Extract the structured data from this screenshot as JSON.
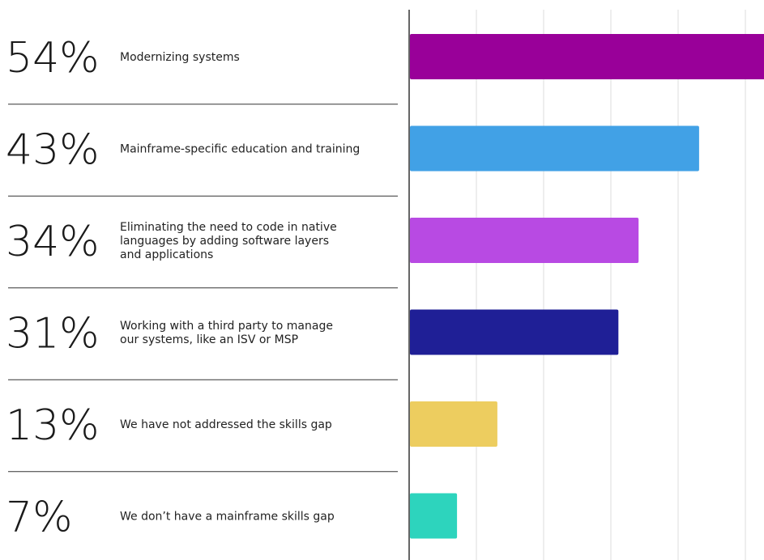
{
  "chart_data": {
    "type": "bar",
    "orientation": "horizontal",
    "categories": [
      "Modernizing systems",
      "Mainframe-specific education and training",
      "Eliminating the need to code in native languages by adding software layers and applications",
      "Working with a third party to manage our systems, like an ISV or MSP",
      "We have not addressed the skills gap",
      "We don’t have a mainframe skills gap"
    ],
    "label_lines": [
      [
        "Modernizing systems"
      ],
      [
        "Mainframe-specific education and training"
      ],
      [
        "Eliminating the need to code in native",
        "languages by adding software layers",
        "and applications"
      ],
      [
        "Working with a third party to manage",
        "our systems, like an ISV or MSP"
      ],
      [
        "We have not addressed the skills gap"
      ],
      [
        "We don’t have a mainframe skills gap"
      ]
    ],
    "values": [
      54,
      43,
      34,
      31,
      13,
      7
    ],
    "value_labels": [
      "54%",
      "43%",
      "34%",
      "31%",
      "13%",
      "7%"
    ],
    "colors": [
      "#990099",
      "#41a1e6",
      "#b84ae3",
      "#1f1f96",
      "#edcd5f",
      "#2dd4bd"
    ],
    "xlim": [
      0,
      55
    ],
    "grid": true,
    "gridline_values": [
      0,
      10,
      20,
      30,
      40,
      50
    ],
    "title": "",
    "xlabel": "",
    "ylabel": ""
  }
}
